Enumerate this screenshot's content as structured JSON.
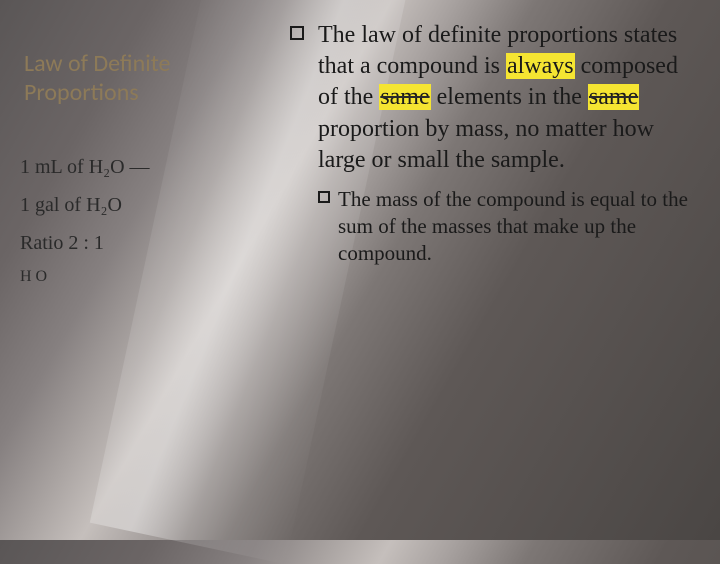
{
  "title": "Law of Definite\nProportions",
  "handwritten": {
    "line1": "1 mL of  H₂O  —",
    "line2": "1 gal of  H₂O",
    "line3": "Ratio   2 : 1",
    "line4": "          H  O"
  },
  "main_bullet": {
    "pre": "The law of definite proportions states that a compound  is ",
    "hl1": "always",
    "mid1": " composed of the ",
    "hl2": "same",
    "mid2": " elements in the ",
    "hl3": "same",
    "post": " proportion by mass, no matter how large or small the sample."
  },
  "sub_bullet": "The mass of the compound is equal to the sum of the masses that make up the compound.",
  "colors": {
    "title": "#8d7a58",
    "text": "#1a1a1a",
    "highlight": "#f5e532"
  }
}
